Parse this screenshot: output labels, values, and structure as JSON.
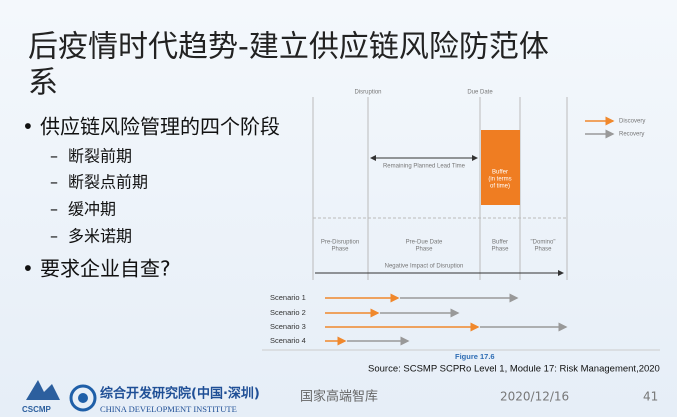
{
  "slide": {
    "title": [
      "后疫情时代趋势-建立供应链风险防范体",
      "系"
    ],
    "bullets": [
      {
        "text": "供应链风险管理的四个阶段",
        "sub": [
          "断裂前期",
          "断裂点前期",
          "缓冲期",
          "多米诺期"
        ]
      },
      {
        "text": "要求企业自查?"
      }
    ],
    "figure": {
      "top_labels": [
        "Disruption",
        "Due Date"
      ],
      "legend": [
        "Discovery",
        "Recovery"
      ],
      "lead_time": "Remaining Planned Lead Time",
      "buffer": [
        "Buffer",
        "(in terms",
        "of time)"
      ],
      "phases": [
        [
          "Pre-Disruption",
          "Phase"
        ],
        [
          "Pre-Due Date",
          "Phase"
        ],
        [
          "Buffer",
          "Phase"
        ],
        [
          "\"Domino\"",
          "Phase"
        ]
      ],
      "impact": "Negative Impact of Disruption",
      "scenarios": [
        "Scenario 1",
        "Scenario 2",
        "Scenario 3",
        "Scenario 4"
      ],
      "caption": "Figure 17.6",
      "source": "Source: SCSMP SCPRo Level 1, Module 17: Risk Management,2020"
    },
    "footer": {
      "logo_text": "CSCMP",
      "institute_cn": "综合开发研究院(中国·深圳)",
      "institute_en": "CHINA DEVELOPMENT INSTITUTE",
      "think_tank": "国家高端智库",
      "date": "2020/12/16",
      "page": "41"
    }
  }
}
